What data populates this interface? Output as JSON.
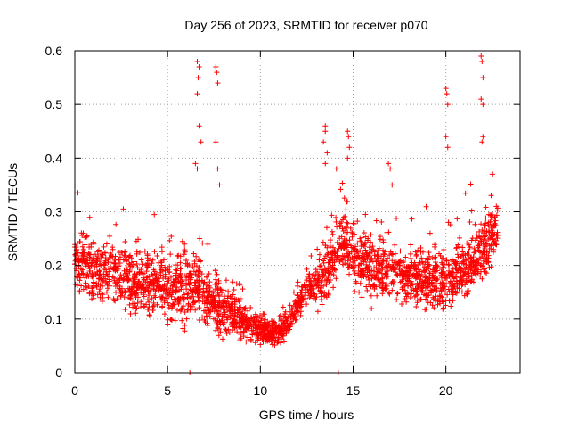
{
  "chart_data": {
    "type": "scatter",
    "title": "Day 256 of 2023, SRMTID for receiver p070",
    "xlabel": "GPS time / hours",
    "ylabel": "SRMTID / TECUs",
    "xlim": [
      0,
      24
    ],
    "ylim": [
      0,
      0.6
    ],
    "xticks": [
      0,
      5,
      10,
      15,
      20
    ],
    "yticks": [
      0,
      0.1,
      0.2,
      0.3,
      0.4,
      0.5,
      0.6
    ],
    "grid": true,
    "marker": "+",
    "series_color": "#ff0000",
    "series": [
      {
        "name": "SRMTID",
        "trend": [
          [
            0.0,
            0.22
          ],
          [
            1.0,
            0.18
          ],
          [
            2.0,
            0.19
          ],
          [
            3.0,
            0.17
          ],
          [
            4.0,
            0.16
          ],
          [
            5.0,
            0.16
          ],
          [
            6.0,
            0.15
          ],
          [
            6.5,
            0.17
          ],
          [
            7.0,
            0.14
          ],
          [
            8.0,
            0.12
          ],
          [
            9.0,
            0.1
          ],
          [
            10.0,
            0.08
          ],
          [
            11.0,
            0.07
          ],
          [
            11.5,
            0.09
          ],
          [
            12.0,
            0.13
          ],
          [
            12.5,
            0.15
          ],
          [
            13.0,
            0.16
          ],
          [
            13.5,
            0.19
          ],
          [
            14.0,
            0.22
          ],
          [
            14.5,
            0.25
          ],
          [
            15.0,
            0.22
          ],
          [
            16.0,
            0.19
          ],
          [
            17.0,
            0.19
          ],
          [
            18.0,
            0.18
          ],
          [
            19.0,
            0.17
          ],
          [
            20.0,
            0.17
          ],
          [
            21.0,
            0.19
          ],
          [
            22.0,
            0.23
          ],
          [
            22.8,
            0.28
          ]
        ],
        "spread": [
          [
            0.0,
            0.08
          ],
          [
            6.0,
            0.09
          ],
          [
            8.0,
            0.07
          ],
          [
            10.0,
            0.035
          ],
          [
            11.5,
            0.035
          ],
          [
            12.5,
            0.04
          ],
          [
            14.0,
            0.08
          ],
          [
            18.0,
            0.07
          ],
          [
            22.8,
            0.08
          ]
        ],
        "outliers": [
          [
            6.6,
            0.58
          ],
          [
            6.7,
            0.57
          ],
          [
            6.65,
            0.55
          ],
          [
            6.6,
            0.52
          ],
          [
            6.7,
            0.46
          ],
          [
            6.8,
            0.43
          ],
          [
            6.5,
            0.39
          ],
          [
            6.6,
            0.38
          ],
          [
            7.6,
            0.57
          ],
          [
            7.65,
            0.56
          ],
          [
            7.7,
            0.54
          ],
          [
            7.6,
            0.43
          ],
          [
            7.7,
            0.38
          ],
          [
            7.8,
            0.35
          ],
          [
            13.5,
            0.46
          ],
          [
            13.5,
            0.45
          ],
          [
            13.4,
            0.43
          ],
          [
            13.6,
            0.41
          ],
          [
            13.5,
            0.39
          ],
          [
            14.1,
            0.38
          ],
          [
            14.7,
            0.45
          ],
          [
            14.75,
            0.44
          ],
          [
            14.8,
            0.42
          ],
          [
            14.7,
            0.4
          ],
          [
            16.9,
            0.39
          ],
          [
            17.0,
            0.38
          ],
          [
            17.1,
            0.35
          ],
          [
            20.0,
            0.53
          ],
          [
            20.05,
            0.52
          ],
          [
            20.1,
            0.5
          ],
          [
            20.0,
            0.44
          ],
          [
            20.1,
            0.42
          ],
          [
            21.9,
            0.59
          ],
          [
            21.95,
            0.58
          ],
          [
            22.0,
            0.55
          ],
          [
            21.9,
            0.51
          ],
          [
            22.0,
            0.5
          ],
          [
            22.0,
            0.44
          ],
          [
            21.95,
            0.43
          ],
          [
            6.2,
            0.0
          ],
          [
            14.2,
            0.0
          ]
        ]
      }
    ]
  }
}
